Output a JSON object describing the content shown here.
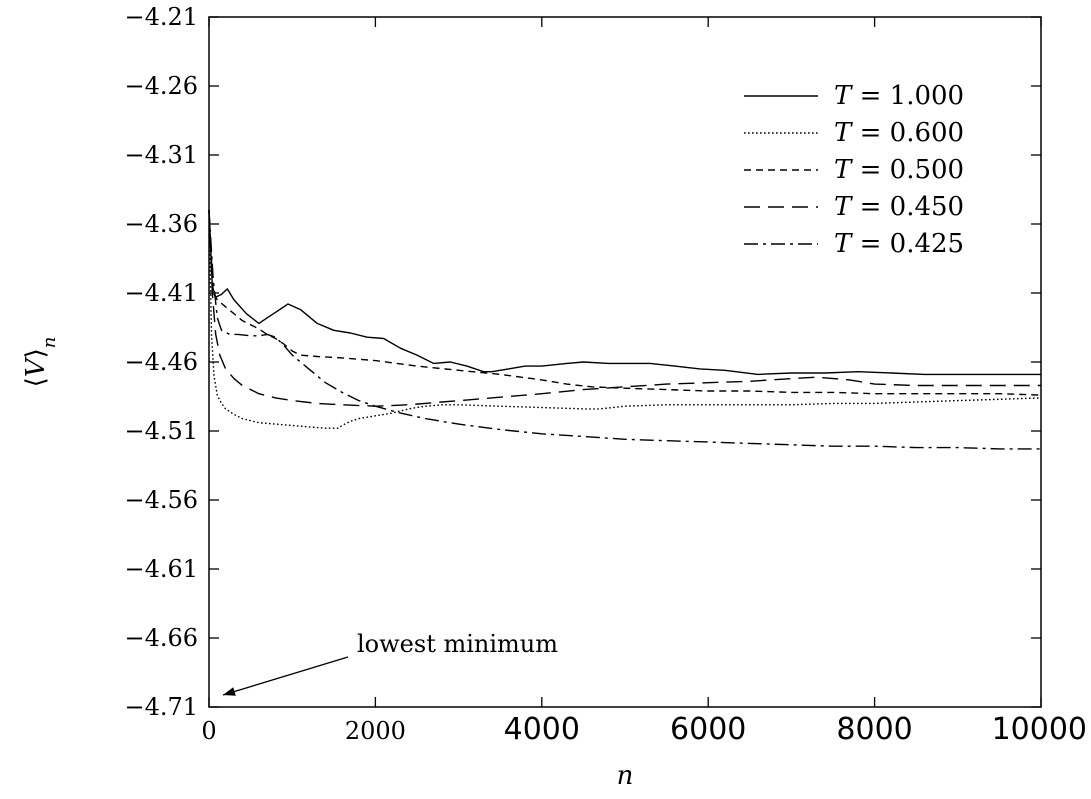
{
  "chart_data": {
    "type": "line",
    "title": "",
    "xlabel": "n",
    "ylabel": "⟨V⟩n",
    "xlim": [
      0,
      10000
    ],
    "ylim": [
      -4.71,
      -4.21
    ],
    "grid": false,
    "legend_position": "top-right",
    "x_ticks": [
      {
        "value": 0,
        "label": "0"
      },
      {
        "value": 2000,
        "label": "2000"
      },
      {
        "value": 4000,
        "label": "4000"
      },
      {
        "value": 6000,
        "label": "6000"
      },
      {
        "value": 8000,
        "label": "8000"
      },
      {
        "value": 10000,
        "label": "10000"
      }
    ],
    "y_ticks": [
      {
        "value": -4.21,
        "label": "−4.21"
      },
      {
        "value": -4.26,
        "label": "−4.26"
      },
      {
        "value": -4.31,
        "label": "−4.31"
      },
      {
        "value": -4.36,
        "label": "−4.36"
      },
      {
        "value": -4.41,
        "label": "−4.41"
      },
      {
        "value": -4.46,
        "label": "−4.46"
      },
      {
        "value": -4.51,
        "label": "−4.51"
      },
      {
        "value": -4.56,
        "label": "−4.56"
      },
      {
        "value": -4.61,
        "label": "−4.61"
      },
      {
        "value": -4.66,
        "label": "−4.66"
      },
      {
        "value": -4.71,
        "label": "−4.71"
      }
    ],
    "series": [
      {
        "name": "T = 1.000",
        "dash": "solid",
        "x": [
          0,
          40,
          80,
          150,
          220,
          300,
          450,
          600,
          700,
          800,
          950,
          1100,
          1300,
          1500,
          1700,
          1900,
          2100,
          2300,
          2500,
          2700,
          2900,
          3100,
          3300,
          3400,
          3600,
          3800,
          4000,
          4300,
          4500,
          4800,
          5000,
          5300,
          5600,
          5900,
          6200,
          6600,
          7000,
          7400,
          7800,
          8200,
          8600,
          9000,
          9500,
          10000
        ],
        "y": [
          -4.35,
          -4.405,
          -4.413,
          -4.411,
          -4.407,
          -4.415,
          -4.425,
          -4.432,
          -4.428,
          -4.424,
          -4.418,
          -4.422,
          -4.432,
          -4.437,
          -4.439,
          -4.442,
          -4.443,
          -4.45,
          -4.455,
          -4.461,
          -4.46,
          -4.463,
          -4.467,
          -4.467,
          -4.465,
          -4.463,
          -4.463,
          -4.461,
          -4.46,
          -4.461,
          -4.461,
          -4.461,
          -4.463,
          -4.465,
          -4.466,
          -4.469,
          -4.468,
          -4.468,
          -4.467,
          -4.468,
          -4.469,
          -4.469,
          -4.469,
          -4.469
        ]
      },
      {
        "name": "T = 0.600",
        "dash": "dotted",
        "x": [
          0,
          30,
          60,
          100,
          150,
          200,
          300,
          400,
          600,
          800,
          1000,
          1200,
          1400,
          1550,
          1600,
          1700,
          1800,
          2000,
          2200,
          2400,
          2600,
          2800,
          3000,
          3500,
          4000,
          4500,
          4700,
          5000,
          5500,
          6000,
          6500,
          7000,
          7500,
          8000,
          8500,
          9000,
          9500,
          10000
        ],
        "y": [
          -4.35,
          -4.44,
          -4.47,
          -4.484,
          -4.49,
          -4.494,
          -4.498,
          -4.501,
          -4.504,
          -4.505,
          -4.506,
          -4.507,
          -4.508,
          -4.508,
          -4.506,
          -4.503,
          -4.501,
          -4.499,
          -4.497,
          -4.494,
          -4.492,
          -4.491,
          -4.491,
          -4.492,
          -4.493,
          -4.494,
          -4.494,
          -4.492,
          -4.491,
          -4.491,
          -4.491,
          -4.491,
          -4.49,
          -4.49,
          -4.489,
          -4.488,
          -4.487,
          -4.486
        ]
      },
      {
        "name": "T = 0.500",
        "dash": "dashed",
        "x": [
          0,
          50,
          100,
          200,
          300,
          400,
          500,
          600,
          700,
          800,
          900,
          1000,
          1100,
          1300,
          1600,
          2000,
          2500,
          3000,
          3500,
          4000,
          4300,
          4600,
          5000,
          5500,
          6000,
          6500,
          7000,
          7500,
          8000,
          8500,
          9000,
          9500,
          10000
        ],
        "y": [
          -4.35,
          -4.41,
          -4.415,
          -4.42,
          -4.425,
          -4.43,
          -4.433,
          -4.436,
          -4.44,
          -4.443,
          -4.447,
          -4.452,
          -4.455,
          -4.456,
          -4.457,
          -4.459,
          -4.463,
          -4.466,
          -4.469,
          -4.473,
          -4.476,
          -4.478,
          -4.479,
          -4.48,
          -4.481,
          -4.481,
          -4.482,
          -4.482,
          -4.483,
          -4.483,
          -4.483,
          -4.483,
          -4.484
        ]
      },
      {
        "name": "T = 0.450",
        "dash": "longdash",
        "x": [
          0,
          40,
          80,
          130,
          200,
          300,
          400,
          500,
          600,
          800,
          1000,
          1300,
          1600,
          2000,
          2400,
          2800,
          3200,
          3600,
          4000,
          4500,
          5000,
          5500,
          6000,
          6500,
          7000,
          7300,
          7700,
          8000,
          8500,
          9000,
          9500,
          10000
        ],
        "y": [
          -4.35,
          -4.41,
          -4.44,
          -4.455,
          -4.465,
          -4.472,
          -4.477,
          -4.48,
          -4.483,
          -4.486,
          -4.488,
          -4.49,
          -4.491,
          -4.492,
          -4.491,
          -4.489,
          -4.487,
          -4.485,
          -4.483,
          -4.48,
          -4.478,
          -4.476,
          -4.475,
          -4.474,
          -4.472,
          -4.471,
          -4.473,
          -4.476,
          -4.477,
          -4.477,
          -4.477,
          -4.477
        ]
      },
      {
        "name": "T = 0.425",
        "dash": "dashdot",
        "x": [
          0,
          50,
          100,
          150,
          250,
          350,
          500,
          600,
          700,
          800,
          900,
          1000,
          1200,
          1400,
          1600,
          1800,
          2000,
          2300,
          2600,
          3000,
          3500,
          4000,
          4500,
          5000,
          5500,
          6000,
          6500,
          7000,
          7500,
          8000,
          8500,
          9000,
          9500,
          10000
        ],
        "y": [
          -4.35,
          -4.4,
          -4.428,
          -4.437,
          -4.44,
          -4.44,
          -4.441,
          -4.441,
          -4.44,
          -4.442,
          -4.448,
          -4.455,
          -4.465,
          -4.475,
          -4.482,
          -4.488,
          -4.492,
          -4.497,
          -4.501,
          -4.505,
          -4.509,
          -4.512,
          -4.514,
          -4.516,
          -4.517,
          -4.518,
          -4.519,
          -4.52,
          -4.521,
          -4.521,
          -4.522,
          -4.522,
          -4.523,
          -4.523
        ]
      }
    ],
    "annotations": [
      {
        "text": "lowest minimum",
        "x": 0,
        "y": -4.71,
        "arrow": true
      }
    ]
  }
}
